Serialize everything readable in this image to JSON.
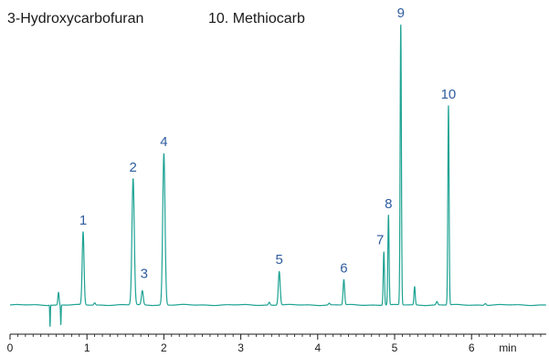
{
  "legend": {
    "left_text": "3-Hydroxycarbofuran",
    "right_text": "10. Methiocarb"
  },
  "chart_data": {
    "type": "line",
    "title": "",
    "xlabel": "min",
    "ylabel": "",
    "xlim": [
      0,
      7
    ],
    "ylim": [
      0,
      100
    ],
    "grid": false,
    "x_ticks": [
      0,
      1,
      2,
      3,
      4,
      5,
      6
    ],
    "x_tick_labels": [
      "0",
      "1",
      "2",
      "3",
      "4",
      "5",
      "6"
    ],
    "baseline": 1.5,
    "peaks": [
      {
        "label": "1",
        "x": 0.95,
        "height": 26,
        "width": 0.012
      },
      {
        "label": "2",
        "x": 1.6,
        "height": 45,
        "width": 0.015
      },
      {
        "label": "3",
        "x": 1.72,
        "height": 5,
        "width": 0.012
      },
      {
        "label": "4",
        "x": 2.0,
        "height": 54,
        "width": 0.015
      },
      {
        "label": "5",
        "x": 3.5,
        "height": 12,
        "width": 0.012
      },
      {
        "label": "6",
        "x": 4.34,
        "height": 9,
        "width": 0.01
      },
      {
        "label": "7",
        "x": 4.86,
        "height": 19,
        "width": 0.008
      },
      {
        "label": "8",
        "x": 4.92,
        "height": 32,
        "width": 0.008
      },
      {
        "label": "9",
        "x": 5.08,
        "height": 100,
        "width": 0.008
      },
      {
        "label": "10",
        "x": 5.7,
        "height": 71,
        "width": 0.008
      }
    ],
    "minor_peaks": [
      {
        "x": 0.52,
        "height": 1.5,
        "width": 0.006
      },
      {
        "x": 0.63,
        "height": 4.5,
        "width": 0.008
      },
      {
        "x": 1.1,
        "height": 0.8,
        "width": 0.01
      },
      {
        "x": 3.37,
        "height": 1.0,
        "width": 0.01
      },
      {
        "x": 4.15,
        "height": 0.6,
        "width": 0.01
      },
      {
        "x": 5.26,
        "height": 6.5,
        "width": 0.008
      },
      {
        "x": 5.55,
        "height": 1.2,
        "width": 0.01
      },
      {
        "x": 6.18,
        "height": 0.6,
        "width": 0.012
      }
    ],
    "injection_dips": [
      {
        "x": 0.52,
        "depth": 9.0,
        "width": 0.004
      },
      {
        "x": 0.66,
        "depth": 7.0,
        "width": 0.004
      }
    ],
    "colors": {
      "trace": "#1ea393",
      "peak_label": "#2f5d9e",
      "axis": "#1a1a1a"
    }
  }
}
